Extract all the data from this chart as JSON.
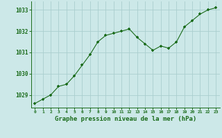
{
  "x": [
    0,
    1,
    2,
    3,
    4,
    5,
    6,
    7,
    8,
    9,
    10,
    11,
    12,
    13,
    14,
    15,
    16,
    17,
    18,
    19,
    20,
    21,
    22,
    23
  ],
  "y": [
    1028.6,
    1028.8,
    1029.0,
    1029.4,
    1029.5,
    1029.9,
    1030.4,
    1030.9,
    1031.5,
    1031.8,
    1031.9,
    1032.0,
    1032.1,
    1031.7,
    1031.4,
    1031.1,
    1031.3,
    1031.2,
    1031.5,
    1032.2,
    1032.5,
    1032.8,
    1033.0,
    1033.1
  ],
  "line_color": "#1a6b1a",
  "marker_color": "#1a6b1a",
  "bg_color": "#cce8e8",
  "grid_color": "#aacece",
  "xlabel": "Graphe pression niveau de la mer (hPa)",
  "xlabel_color": "#1a6b1a",
  "tick_color": "#1a6b1a",
  "ylim": [
    1028.4,
    1033.4
  ],
  "yticks": [
    1029,
    1030,
    1031,
    1032,
    1033
  ],
  "xticks": [
    0,
    1,
    2,
    3,
    4,
    5,
    6,
    7,
    8,
    9,
    10,
    11,
    12,
    13,
    14,
    15,
    16,
    17,
    18,
    19,
    20,
    21,
    22,
    23
  ],
  "spine_color": "#1a6b1a",
  "figsize": [
    3.2,
    2.0
  ],
  "dpi": 100
}
